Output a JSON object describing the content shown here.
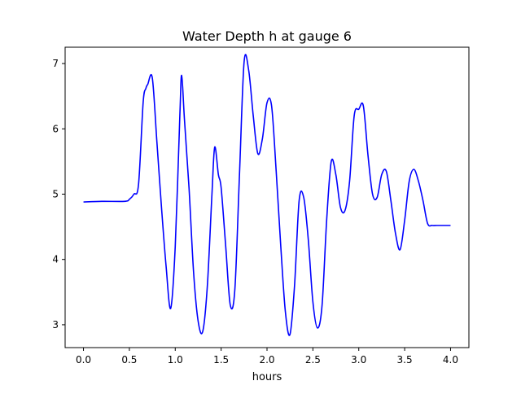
{
  "chart_data": {
    "type": "line",
    "title": "Water Depth h at gauge 6",
    "xlabel": "hours",
    "ylabel": "",
    "xlim": [
      -0.2,
      4.2
    ],
    "ylim": [
      2.65,
      7.25
    ],
    "xticks": [
      0.0,
      0.5,
      1.0,
      1.5,
      2.0,
      2.5,
      3.0,
      3.5,
      4.0
    ],
    "xtick_labels": [
      "0.0",
      "0.5",
      "1.0",
      "1.5",
      "2.0",
      "2.5",
      "3.0",
      "3.5",
      "4.0"
    ],
    "yticks": [
      3,
      4,
      5,
      6,
      7
    ],
    "ytick_labels": [
      "3",
      "4",
      "5",
      "6",
      "7"
    ],
    "grid": false,
    "series": [
      {
        "color": "#0000ff",
        "x": [
          0.0,
          0.2,
          0.45,
          0.5,
          0.55,
          0.6,
          0.65,
          0.68,
          0.7,
          0.75,
          0.8,
          0.85,
          0.9,
          0.95,
          1.0,
          1.05,
          1.07,
          1.1,
          1.15,
          1.2,
          1.25,
          1.3,
          1.35,
          1.4,
          1.43,
          1.47,
          1.5,
          1.55,
          1.6,
          1.65,
          1.7,
          1.75,
          1.8,
          1.85,
          1.9,
          1.95,
          2.0,
          2.05,
          2.1,
          2.15,
          2.2,
          2.25,
          2.3,
          2.35,
          2.4,
          2.45,
          2.5,
          2.55,
          2.6,
          2.65,
          2.7,
          2.75,
          2.8,
          2.85,
          2.9,
          2.95,
          3.0,
          3.05,
          3.1,
          3.15,
          3.2,
          3.25,
          3.3,
          3.35,
          3.4,
          3.45,
          3.5,
          3.55,
          3.6,
          3.65,
          3.7,
          3.75,
          3.8,
          3.85,
          3.9,
          3.95,
          4.0
        ],
        "y": [
          4.88,
          4.89,
          4.89,
          4.92,
          5.0,
          5.15,
          6.4,
          6.62,
          6.68,
          6.78,
          5.8,
          4.8,
          3.9,
          3.25,
          4.2,
          6.2,
          6.82,
          6.15,
          5.1,
          3.8,
          3.05,
          2.9,
          3.6,
          5.0,
          5.72,
          5.3,
          5.1,
          4.2,
          3.3,
          3.55,
          5.3,
          7.02,
          6.9,
          6.2,
          5.62,
          5.85,
          6.4,
          6.35,
          5.35,
          4.2,
          3.2,
          2.85,
          3.6,
          4.9,
          4.95,
          4.3,
          3.35,
          2.95,
          3.3,
          4.6,
          5.5,
          5.3,
          4.8,
          4.75,
          5.2,
          6.2,
          6.3,
          6.35,
          5.6,
          5.0,
          4.95,
          5.3,
          5.35,
          4.9,
          4.4,
          4.15,
          4.6,
          5.2,
          5.38,
          5.2,
          4.9,
          4.55,
          4.52,
          4.52,
          4.52,
          4.52,
          4.52
        ]
      }
    ]
  }
}
